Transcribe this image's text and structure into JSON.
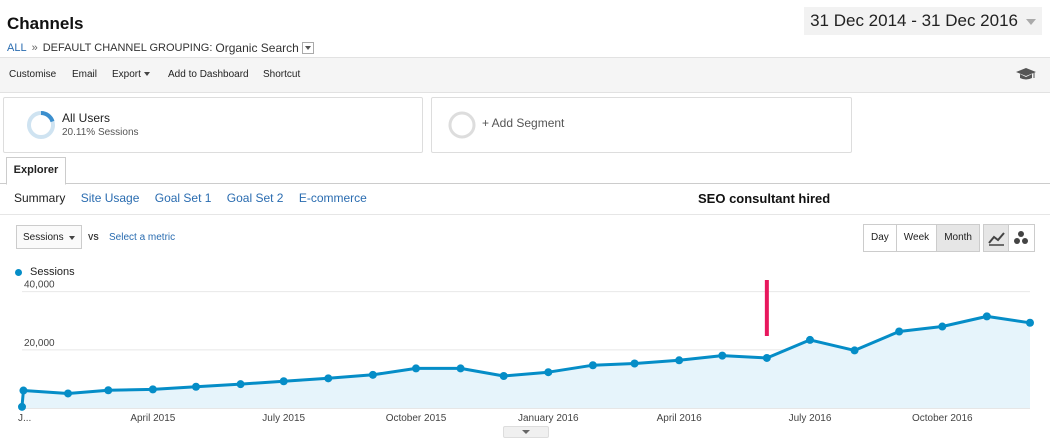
{
  "header": {
    "title": "Channels",
    "breadcrumb": {
      "all": "ALL",
      "separator": "»",
      "grouping": "DEFAULT CHANNEL GROUPING:",
      "value": "Organic Search"
    },
    "date_range": "31 Dec 2014 - 31 Dec 2016"
  },
  "toolbar": {
    "customise": "Customise",
    "email": "Email",
    "export": "Export",
    "add_to_dashboard": "Add to Dashboard",
    "shortcut": "Shortcut"
  },
  "segments": [
    {
      "name": "All Users",
      "subtitle": "20.11% Sessions",
      "share": 0.2011
    },
    {
      "name": "+ Add Segment"
    }
  ],
  "explorer": {
    "tab": "Explorer",
    "subtabs": [
      "Summary",
      "Site Usage",
      "Goal Set 1",
      "Goal Set 2",
      "E-commerce"
    ],
    "metric": "Sessions",
    "vs": "VS",
    "select_metric": "Select a metric",
    "granularity": [
      "Day",
      "Week",
      "Month"
    ],
    "active_granularity": "Month"
  },
  "annotation": {
    "text": "SEO consultant hired",
    "color": "#e8175d"
  },
  "colors": {
    "series": "#058dc7",
    "fill": "#e6f4fb",
    "link": "#2a6cb0"
  },
  "chart_data": {
    "type": "area",
    "series": [
      {
        "name": "Sessions",
        "points": [
          {
            "x": "2014-12-31",
            "y": 400
          },
          {
            "x": "2015-01-01",
            "y": 6000
          },
          {
            "x": "2015-02-01",
            "y": 5000
          },
          {
            "x": "2015-03-01",
            "y": 6100
          },
          {
            "x": "2015-04-01",
            "y": 6400
          },
          {
            "x": "2015-05-01",
            "y": 7300
          },
          {
            "x": "2015-06-01",
            "y": 8200
          },
          {
            "x": "2015-07-01",
            "y": 9200
          },
          {
            "x": "2015-08-01",
            "y": 10200
          },
          {
            "x": "2015-09-01",
            "y": 11400
          },
          {
            "x": "2015-10-01",
            "y": 13600
          },
          {
            "x": "2015-11-01",
            "y": 13600
          },
          {
            "x": "2015-12-01",
            "y": 11000
          },
          {
            "x": "2016-01-01",
            "y": 12300
          },
          {
            "x": "2016-02-01",
            "y": 14700
          },
          {
            "x": "2016-03-01",
            "y": 15300
          },
          {
            "x": "2016-04-01",
            "y": 16400
          },
          {
            "x": "2016-05-01",
            "y": 18000
          },
          {
            "x": "2016-06-01",
            "y": 17200
          },
          {
            "x": "2016-07-01",
            "y": 23400
          },
          {
            "x": "2016-08-01",
            "y": 19800
          },
          {
            "x": "2016-09-01",
            "y": 26300
          },
          {
            "x": "2016-10-01",
            "y": 28000
          },
          {
            "x": "2016-11-01",
            "y": 31500
          },
          {
            "x": "2016-12-01",
            "y": 29300
          }
        ]
      }
    ],
    "x_tick_labels": [
      {
        "x": "2015-01-01",
        "label": "J..."
      },
      {
        "x": "2015-04-01",
        "label": "April 2015"
      },
      {
        "x": "2015-07-01",
        "label": "July 2015"
      },
      {
        "x": "2015-10-01",
        "label": "October 2015"
      },
      {
        "x": "2016-01-01",
        "label": "January 2016"
      },
      {
        "x": "2016-04-01",
        "label": "April 2016"
      },
      {
        "x": "2016-07-01",
        "label": "July 2016"
      },
      {
        "x": "2016-10-01",
        "label": "October 2016"
      }
    ],
    "y_ticks": [
      {
        "value": 20000,
        "label": "20,000"
      },
      {
        "value": 40000,
        "label": "40,000"
      }
    ],
    "ylim": [
      0,
      44000
    ],
    "annotation_x": "2016-06-01",
    "grid": true,
    "legend": "top-left"
  }
}
